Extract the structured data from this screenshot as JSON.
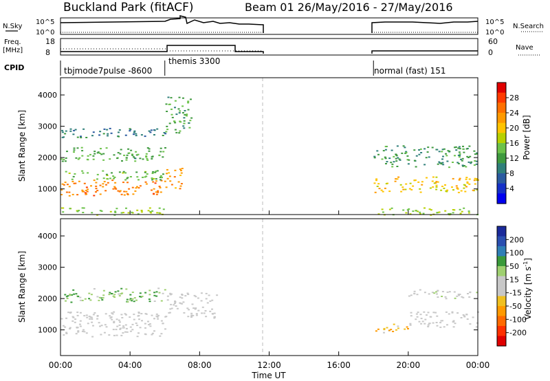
{
  "header": {
    "title": "Buckland Park (fitACF)",
    "beam_info": "Beam 01  26/May/2016 - 27/May/2016"
  },
  "strips": {
    "nsky_label": "N.Sky",
    "nsearch_label": "N.Search",
    "noise_ticks_left": [
      "10^5",
      "10^0"
    ],
    "noise_ticks_right": [
      "10^5",
      "10^0"
    ],
    "freq_label_1": "Freq.",
    "freq_label_2": "[MHz]",
    "freq_ticks": [
      "18",
      "8"
    ],
    "nave_label": "Nave",
    "nave_ticks": [
      "60",
      "0"
    ],
    "cpid_label": "CPID",
    "cpid_segments": [
      {
        "text": "tbjmode7pulse -8600",
        "start": 0,
        "end": 6
      },
      {
        "text": "themis 3300",
        "start": 6,
        "end": 11.7
      },
      {
        "text": "normal (fast) 151",
        "start": 18,
        "end": 24
      }
    ]
  },
  "power_panel": {
    "ylabel": "Slant Range [km]",
    "colorbar_label": "Power [dB]",
    "colorbar_ticks": [
      "28",
      "24",
      "20",
      "16",
      "12",
      "8",
      "4"
    ],
    "colorbar_colors": [
      "#e00000",
      "#ff3a00",
      "#ff7000",
      "#ff9a00",
      "#ffc400",
      "#b7d000",
      "#6cc24a",
      "#3f9a3f",
      "#2f7f7a",
      "#2a5aa0",
      "#1530c8",
      "#0000f0"
    ]
  },
  "velocity_panel": {
    "ylabel": "Slant Range [km]",
    "colorbar_label": "Velocity [m s^-1]",
    "colorbar_ticks": [
      "200",
      "100",
      "50",
      "15",
      "-15",
      "-50",
      "-100",
      "-200"
    ],
    "colorbar_colors": [
      "#1a2a9a",
      "#2a4fb0",
      "#2f7fb6",
      "#3a9a3a",
      "#9fd070",
      "#c8c8c8",
      "#c8c8c8",
      "#f0c020",
      "#ff9a00",
      "#ff6a00",
      "#ff3000",
      "#e00000"
    ]
  },
  "xaxis": {
    "label": "Time UT",
    "ticks": [
      "00:00",
      "04:00",
      "08:00",
      "12:00",
      "16:00",
      "20:00",
      "00:00"
    ]
  },
  "chart_data": {
    "type": "heatmap",
    "title": "Buckland Park (fitACF)",
    "subtitle": "Beam 01  26/May/2016 - 27/May/2016",
    "xlabel": "Time UT",
    "ylabel": "Slant Range [km]",
    "xlim": [
      0,
      24
    ],
    "ylim": [
      180,
      4550
    ],
    "yticks": [
      1000,
      2000,
      3000,
      4000
    ],
    "data_gap": [
      11.7,
      18
    ],
    "series": [
      {
        "name": "Power [dB]",
        "clim": [
          0,
          32
        ],
        "bands": [
          {
            "t0": 0,
            "t1": 6,
            "r0": 800,
            "r1": 1300,
            "value": 25
          },
          {
            "t0": 0,
            "t1": 6,
            "r0": 1300,
            "r1": 1600,
            "value": 14
          },
          {
            "t0": 0,
            "t1": 6,
            "r0": 1900,
            "r1": 2350,
            "value": 13
          },
          {
            "t0": 0,
            "t1": 6,
            "r0": 2650,
            "r1": 2950,
            "value": 8
          },
          {
            "t0": 0,
            "t1": 6,
            "r0": 180,
            "r1": 420,
            "value": 16
          },
          {
            "t0": 6,
            "t1": 7,
            "r0": 1000,
            "r1": 1700,
            "value": 24
          },
          {
            "t0": 6,
            "t1": 7.5,
            "r0": 2800,
            "r1": 4000,
            "value": 12
          },
          {
            "t0": 18,
            "t1": 24,
            "r0": 900,
            "r1": 1400,
            "value": 20
          },
          {
            "t0": 18,
            "t1": 24,
            "r0": 1700,
            "r1": 2400,
            "value": 11
          },
          {
            "t0": 18,
            "t1": 24,
            "r0": 180,
            "r1": 420,
            "value": 16
          }
        ]
      },
      {
        "name": "Velocity [m s^-1]",
        "clim": [
          -250,
          250
        ],
        "bands": [
          {
            "t0": 0,
            "t1": 6,
            "r0": 800,
            "r1": 1600,
            "value": 0
          },
          {
            "t0": 0,
            "t1": 6,
            "r0": 1900,
            "r1": 2350,
            "value": 80
          },
          {
            "t0": 6,
            "t1": 9,
            "r0": 1400,
            "r1": 2200,
            "value": 0
          },
          {
            "t0": 18,
            "t1": 20,
            "r0": 900,
            "r1": 1200,
            "value": -80
          },
          {
            "t0": 20,
            "t1": 24,
            "r0": 1100,
            "r1": 1600,
            "value": 0
          },
          {
            "t0": 20,
            "t1": 24,
            "r0": 2000,
            "r1": 2300,
            "value": 10
          }
        ]
      }
    ]
  }
}
